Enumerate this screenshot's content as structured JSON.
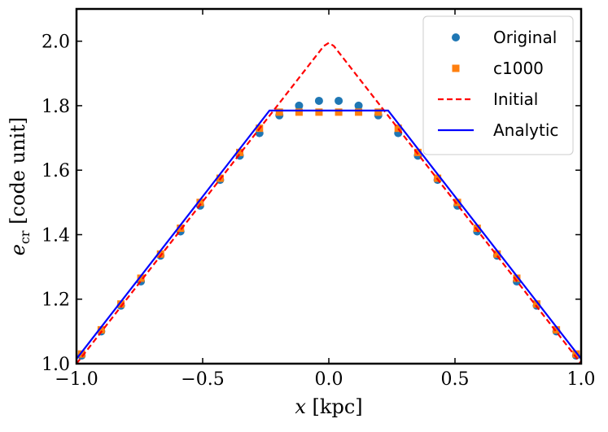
{
  "chart_data": {
    "type": "line",
    "title": "",
    "xlabel": "x [kpc]",
    "ylabel": "e_cr [code unit]",
    "xlim": [
      -1.0,
      1.0
    ],
    "ylim": [
      1.0,
      2.1
    ],
    "xticks": [
      -1.0,
      -0.5,
      0.0,
      0.5,
      1.0
    ],
    "xtick_labels": [
      "−1.0",
      "−0.5",
      "0.0",
      "0.5",
      "1.0"
    ],
    "yticks": [
      1.0,
      1.2,
      1.4,
      1.6,
      1.8,
      2.0
    ],
    "ytick_labels": [
      "1.0",
      "1.2",
      "1.4",
      "1.6",
      "1.8",
      "2.0"
    ],
    "grid": false,
    "legend_position": "top-right",
    "series": [
      {
        "name": "Original",
        "kind": "scatter",
        "marker": "circle",
        "color": "#1f77b4",
        "x": [
          -0.98,
          -0.902,
          -0.824,
          -0.745,
          -0.667,
          -0.588,
          -0.51,
          -0.431,
          -0.353,
          -0.275,
          -0.196,
          -0.118,
          -0.039,
          0.039,
          0.118,
          0.196,
          0.275,
          0.353,
          0.431,
          0.51,
          0.588,
          0.667,
          0.745,
          0.824,
          0.902,
          0.98
        ],
        "y": [
          1.025,
          1.1,
          1.18,
          1.255,
          1.335,
          1.41,
          1.49,
          1.57,
          1.645,
          1.715,
          1.77,
          1.8,
          1.815,
          1.815,
          1.8,
          1.77,
          1.715,
          1.645,
          1.57,
          1.49,
          1.41,
          1.335,
          1.255,
          1.18,
          1.1,
          1.025
        ]
      },
      {
        "name": "c1000",
        "kind": "scatter",
        "marker": "square",
        "color": "#ff7f0e",
        "x": [
          -0.98,
          -0.902,
          -0.824,
          -0.745,
          -0.667,
          -0.588,
          -0.51,
          -0.431,
          -0.353,
          -0.275,
          -0.196,
          -0.118,
          -0.039,
          0.039,
          0.118,
          0.196,
          0.275,
          0.353,
          0.431,
          0.51,
          0.588,
          0.667,
          0.745,
          0.824,
          0.902,
          0.98
        ],
        "y": [
          1.03,
          1.105,
          1.185,
          1.265,
          1.34,
          1.42,
          1.5,
          1.575,
          1.655,
          1.73,
          1.78,
          1.78,
          1.78,
          1.78,
          1.78,
          1.78,
          1.73,
          1.655,
          1.575,
          1.5,
          1.42,
          1.34,
          1.265,
          1.185,
          1.105,
          1.03
        ]
      },
      {
        "name": "Initial",
        "kind": "line",
        "style": "dashed",
        "color": "#ff0000",
        "x": [
          -1.0,
          -0.02,
          0.0,
          0.02,
          1.0
        ],
        "y": [
          1.0,
          1.985,
          1.995,
          1.985,
          1.0
        ]
      },
      {
        "name": "Analytic",
        "kind": "line",
        "style": "solid",
        "color": "#0000ff",
        "x": [
          -1.0,
          -0.235,
          0.235,
          1.0
        ],
        "y": [
          1.015,
          1.785,
          1.785,
          1.015
        ]
      }
    ]
  }
}
